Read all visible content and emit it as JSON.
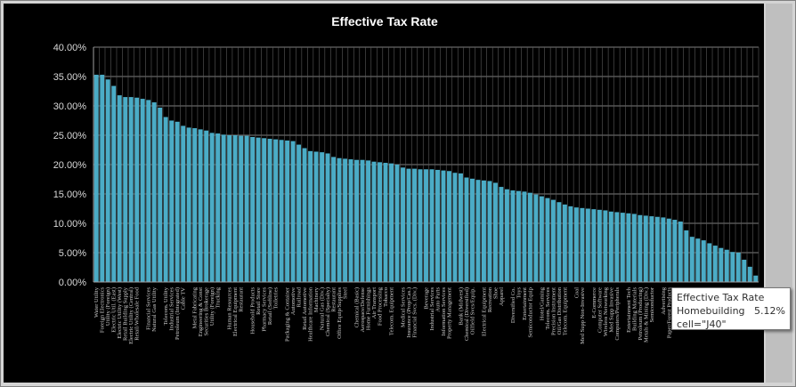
{
  "chart_data": {
    "type": "bar",
    "title": "Effective Tax Rate",
    "xlabel": "",
    "ylabel": "",
    "ylim": [
      0,
      40
    ],
    "y_ticks": [
      "0.00%",
      "5.00%",
      "10.00%",
      "15.00%",
      "20.00%",
      "25.00%",
      "30.00%",
      "35.00%",
      "40.00%"
    ],
    "bar_color": "#4bacc6",
    "categories": [
      "Water Utility",
      "Foreign Electronics",
      "Utility (Foreign)",
      "Electric Util. (East)",
      "Electric Utility (West)",
      "Retail Building Supply",
      "Electric Utility (Central)",
      "Retail/Wholesale Food",
      "",
      "Financial Services",
      "Natural Gas Utility",
      "",
      "Telecom. Utility",
      "Industrial Services",
      "Petroleum (Integrated)",
      "Cable TV",
      "",
      "Metal Fabricating",
      "Engineering & Const",
      "Securities Brokerage",
      "Utility (Foreign)",
      "Trucking",
      "",
      "Human Resources",
      "Electrical Equipment",
      "Restaurant",
      "",
      "Household Products",
      "Retail Store",
      "Pharmacy Services",
      "Retail (Softline)",
      "Toiletries",
      "",
      "Packaging & Container",
      "Automotive",
      "Railroad",
      "Retail Automotive",
      "Healthcare Information",
      "Machinery",
      "Natural Gas (Div.)",
      "Chemical (Specialty)",
      "Restaurant",
      "Office Equip/Supplies",
      "Steel",
      "",
      "Chemical (Basic)",
      "Aerospace/Defense",
      "Home Furnishings",
      "Air Transport",
      "Food Processing",
      "Tobacco",
      "Telecom. Equipment",
      "",
      "Medical Services",
      "Insurance (Prop/Cas.)",
      "Financial Svcs. (Div.)",
      "",
      "Beverage",
      "Industrial Services",
      "Auto Parts",
      "Information Services",
      "Property Management",
      "",
      "Bank (Midwest)",
      "Chemical (Diversified)",
      "Oilfield Svcs/Equip.",
      "",
      "Electrical Equipment",
      "Recreation",
      "Shoe",
      "Apparel",
      "",
      "Diversified Co.",
      "Toys",
      "Entertainment",
      "Semiconductor Equip",
      "",
      "Hotel/Gaming",
      "Telecom. Services",
      "Precision Instrument",
      "Oil/Gas Distribution",
      "Telecom. Equipment",
      "",
      "Coal",
      "Med Supp Non-Invasive",
      "",
      "E-Commerce",
      "Computer Software",
      "Wireless Networking",
      "Med Supp Invasive",
      "Computers/Peripherals",
      "",
      "Entertainment Tech",
      "Building Materials",
      "Petroleum (Producing)",
      "Metals & Mining (Div.)",
      "Semiconductor",
      "",
      "Advertising",
      "Paper/Forest Products",
      "Electronics",
      "",
      "Power",
      "",
      "",
      "",
      "",
      "",
      "",
      "",
      "Homebuilding",
      "",
      "",
      "Public",
      ""
    ],
    "values": [
      35.3,
      35.3,
      34.5,
      33.4,
      31.8,
      31.5,
      31.5,
      31.4,
      31.2,
      31.0,
      30.6,
      29.7,
      28.1,
      27.5,
      27.3,
      26.6,
      26.3,
      26.2,
      26.0,
      25.8,
      25.4,
      25.3,
      25.1,
      25.0,
      25.0,
      24.9,
      24.9,
      24.7,
      24.6,
      24.5,
      24.4,
      24.3,
      24.2,
      24.1,
      24.0,
      23.4,
      22.8,
      22.3,
      22.2,
      22.1,
      21.9,
      21.3,
      21.1,
      21.0,
      20.9,
      20.8,
      20.8,
      20.7,
      20.5,
      20.4,
      20.3,
      20.2,
      20.0,
      19.5,
      19.3,
      19.3,
      19.2,
      19.2,
      19.2,
      19.1,
      19.0,
      18.9,
      18.6,
      18.5,
      17.8,
      17.6,
      17.4,
      17.3,
      17.2,
      16.9,
      16.2,
      15.8,
      15.6,
      15.5,
      15.4,
      15.2,
      14.9,
      14.6,
      14.3,
      14.0,
      13.6,
      13.2,
      12.9,
      12.7,
      12.6,
      12.5,
      12.4,
      12.3,
      12.2,
      12.0,
      11.9,
      11.8,
      11.7,
      11.6,
      11.4,
      11.3,
      11.2,
      11.1,
      11.0,
      10.8,
      10.6,
      10.3,
      8.8,
      7.7,
      7.4,
      7.1,
      6.6,
      6.2,
      5.8,
      5.5,
      5.12,
      5.0,
      3.8,
      2.6,
      1.1
    ]
  },
  "tooltip": {
    "series": "Effective Tax Rate",
    "category": "Homebuilding",
    "value": "5.12%",
    "cell": "cell=\"J40\""
  }
}
